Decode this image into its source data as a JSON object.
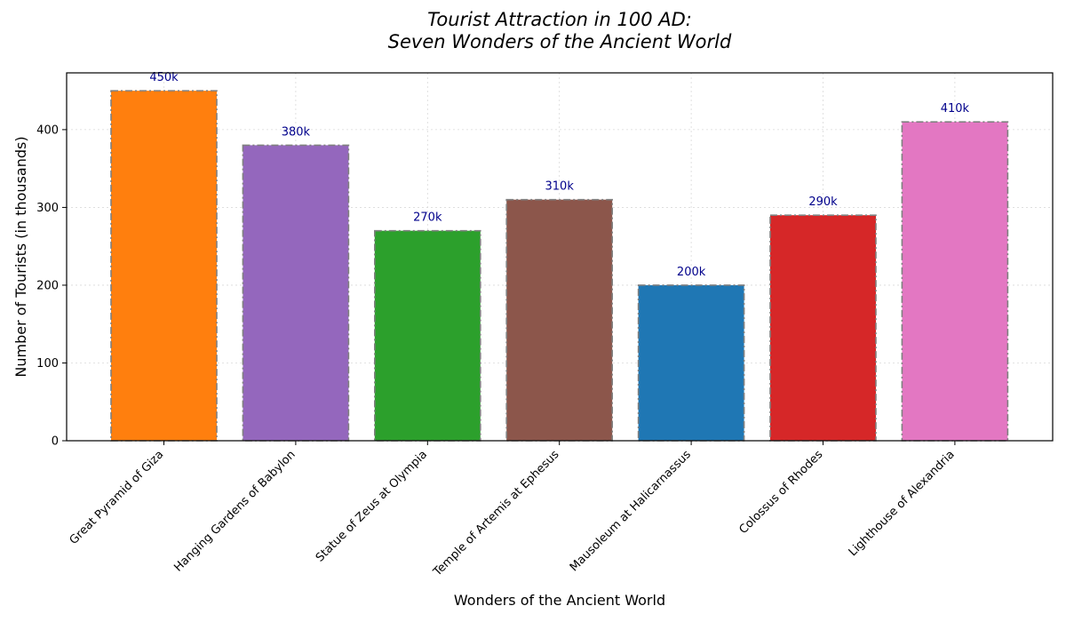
{
  "chart_data": {
    "type": "bar",
    "title_line1": "Tourist Attraction in 100 AD:",
    "title_line2": "Seven Wonders of the Ancient World",
    "xlabel": "Wonders of the Ancient World",
    "ylabel": "Number of Tourists (in thousands)",
    "categories": [
      "Great Pyramid of Giza",
      "Hanging Gardens of Babylon",
      "Statue of Zeus at Olympia",
      "Temple of Artemis at Ephesus",
      "Mausoleum at Halicarnassus",
      "Colossus of Rhodes",
      "Lighthouse of Alexandria"
    ],
    "values": [
      450,
      380,
      270,
      310,
      200,
      290,
      410
    ],
    "value_labels": [
      "450k",
      "380k",
      "270k",
      "310k",
      "200k",
      "290k",
      "410k"
    ],
    "colors": [
      "#ff7f0e",
      "#9467bd",
      "#2ca02c",
      "#8c564b",
      "#1f77b4",
      "#d62728",
      "#e377c2"
    ],
    "ylim": [
      0,
      473
    ],
    "yticks": [
      0,
      100,
      200,
      300,
      400
    ],
    "grid": true,
    "bar_edge_color": "#808080",
    "value_label_color": "#00008b"
  }
}
